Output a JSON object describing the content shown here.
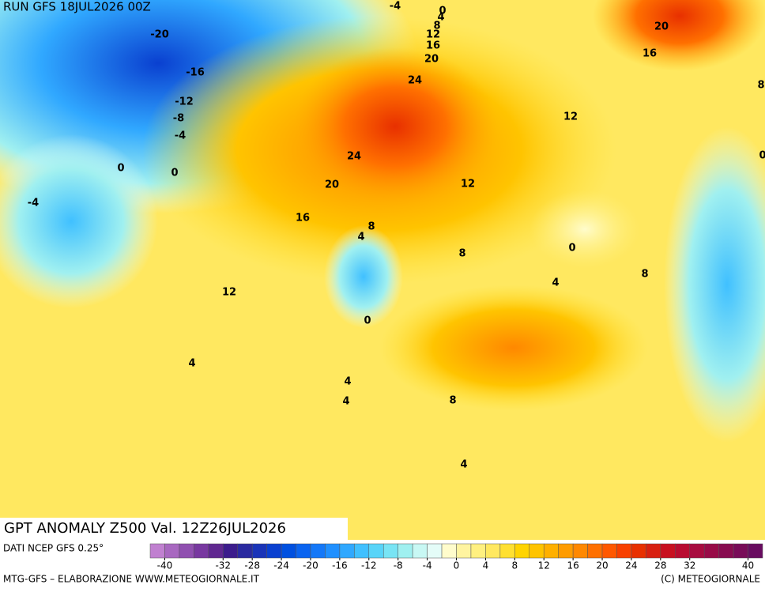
{
  "header": {
    "run": "RUN GFS 18JUL2026 00Z"
  },
  "map": {
    "title": "GPT ANOMALY Z500 Val. 12Z26JUL2026",
    "contour_labels": [
      -4,
      0,
      4,
      8,
      12,
      16,
      20,
      24,
      20,
      16,
      8,
      12,
      0,
      -20,
      -16,
      -12,
      -8,
      -4,
      0,
      0,
      -4,
      24,
      20,
      12,
      16,
      8,
      4,
      8,
      0,
      8,
      4,
      12,
      0,
      4,
      4,
      8,
      4,
      4
    ]
  },
  "footer": {
    "source": "DATI NCEP GFS 0.25°",
    "credit": "MTG-GFS – ELABORAZIONE WWW.METEOGIORNALE.IT",
    "copyright": "(C) METEOGIORNALE"
  },
  "colorbar": {
    "lim": [
      -42,
      42
    ],
    "ticks": [
      -40,
      -32,
      -28,
      -24,
      -20,
      -16,
      -12,
      -8,
      -4,
      0,
      4,
      8,
      12,
      16,
      20,
      24,
      28,
      32,
      40
    ],
    "colors": [
      "#c080d0",
      "#a868c0",
      "#9050b0",
      "#7838a0",
      "#602890",
      "#3c1c8c",
      "#2a2aa0",
      "#1a34b8",
      "#0a40d0",
      "#0050e0",
      "#0a64f0",
      "#1478f8",
      "#2090ff",
      "#30a8ff",
      "#40c0ff",
      "#58d4f8",
      "#78e4f4",
      "#a0f0f0",
      "#c8f8f4",
      "#e4fcf8",
      "#fffccc",
      "#fff4a0",
      "#fff080",
      "#ffe860",
      "#ffe030",
      "#ffd400",
      "#ffc400",
      "#ffb000",
      "#ff9c00",
      "#ff8800",
      "#ff7000",
      "#ff5800",
      "#f84000",
      "#e83000",
      "#d82010",
      "#c81020",
      "#b80c30",
      "#a80c40",
      "#980c48",
      "#880c50",
      "#780c58",
      "#680c60"
    ]
  }
}
